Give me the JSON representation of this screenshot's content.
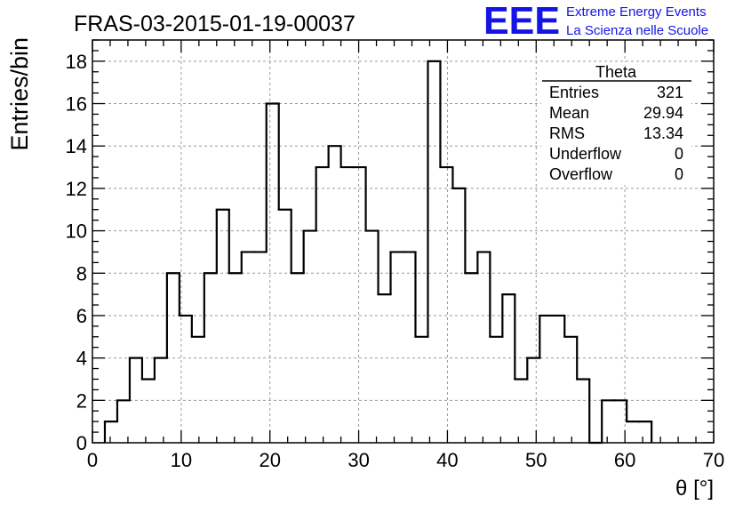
{
  "chart_data": {
    "type": "bar",
    "title": "FRAS-03-2015-01-19-00037",
    "xlabel": "θ [°]",
    "ylabel": "Entries/bin",
    "xlim": [
      0,
      70
    ],
    "ylim": [
      0,
      19
    ],
    "grid": true,
    "histogram_style": "step",
    "bin_edges": [
      1.4,
      2.8,
      4.2,
      5.6,
      7.0,
      8.4,
      9.8,
      11.2,
      12.6,
      14.0,
      15.4,
      16.8,
      18.2,
      19.6,
      21.0,
      22.4,
      23.8,
      25.2,
      26.6,
      28.0,
      29.4,
      30.8,
      32.2,
      33.6,
      35.0,
      36.4,
      37.8,
      39.2,
      40.6,
      42.0,
      43.4,
      44.8,
      46.2,
      47.6,
      49.0,
      50.4,
      51.8,
      53.2,
      54.6,
      56.0,
      57.4,
      58.8,
      60.2,
      61.6,
      63.0
    ],
    "values": [
      1,
      2,
      4,
      3,
      4,
      8,
      6,
      5,
      8,
      11,
      8,
      9,
      9,
      16,
      11,
      8,
      10,
      13,
      14,
      13,
      13,
      10,
      7,
      9,
      9,
      5,
      18,
      13,
      12,
      8,
      9,
      5,
      7,
      3,
      4,
      6,
      6,
      5,
      3,
      0,
      2,
      2,
      1,
      1
    ],
    "x_ticks": [
      "0",
      "10",
      "20",
      "30",
      "40",
      "50",
      "60",
      "70"
    ],
    "y_ticks": [
      "0",
      "2",
      "4",
      "6",
      "8",
      "10",
      "12",
      "14",
      "16",
      "18"
    ],
    "stats_box": {
      "title": "Theta",
      "rows": [
        {
          "label": "Entries",
          "value": "321"
        },
        {
          "label": "Mean",
          "value": "29.94"
        },
        {
          "label": "RMS",
          "value": "13.34"
        },
        {
          "label": "Underflow",
          "value": "0"
        },
        {
          "label": "Overflow",
          "value": "0"
        }
      ]
    }
  },
  "logo": {
    "text": "EEE",
    "line1": "Extreme Energy Events",
    "line2": "La Scienza nelle Scuole",
    "color": "#1414e6"
  }
}
